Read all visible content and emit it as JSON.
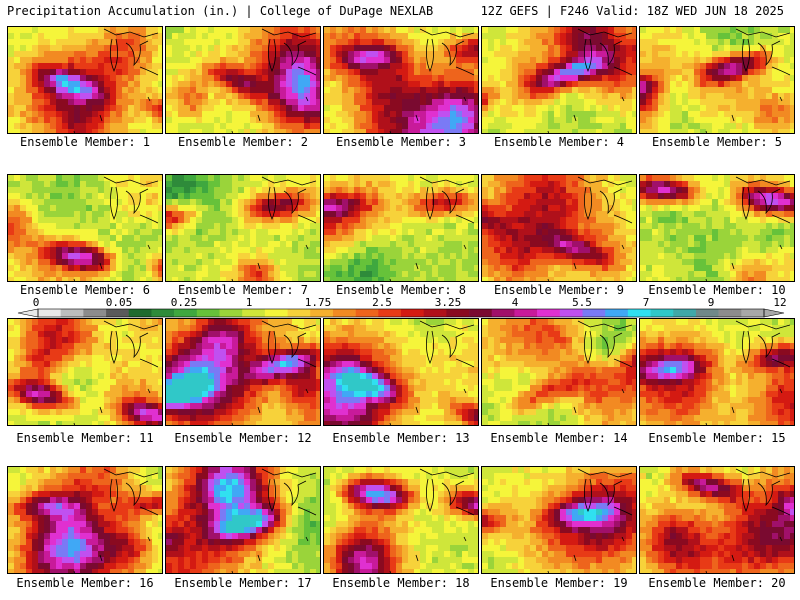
{
  "header": {
    "left": "Precipitation Accumulation (in.) | College of DuPage NEXLAB",
    "right": "12Z GEFS | F246 Valid: 18Z WED JUN 18 2025"
  },
  "member_label_prefix": "Ensemble Member: ",
  "members": [
    {
      "id": 1,
      "label": "Ensemble Member: 1",
      "seed": 11
    },
    {
      "id": 2,
      "label": "Ensemble Member: 2",
      "seed": 23
    },
    {
      "id": 3,
      "label": "Ensemble Member: 3",
      "seed": 37
    },
    {
      "id": 4,
      "label": "Ensemble Member: 4",
      "seed": 41
    },
    {
      "id": 5,
      "label": "Ensemble Member: 5",
      "seed": 53
    },
    {
      "id": 6,
      "label": "Ensemble Member: 6",
      "seed": 67
    },
    {
      "id": 7,
      "label": "Ensemble Member: 7",
      "seed": 71
    },
    {
      "id": 8,
      "label": "Ensemble Member: 8",
      "seed": 83
    },
    {
      "id": 9,
      "label": "Ensemble Member: 9",
      "seed": 97
    },
    {
      "id": 10,
      "label": "Ensemble Member: 10",
      "seed": 101
    },
    {
      "id": 11,
      "label": "Ensemble Member: 11",
      "seed": 113
    },
    {
      "id": 12,
      "label": "Ensemble Member: 12",
      "seed": 127
    },
    {
      "id": 13,
      "label": "Ensemble Member: 13",
      "seed": 131
    },
    {
      "id": 14,
      "label": "Ensemble Member: 14",
      "seed": 149
    },
    {
      "id": 15,
      "label": "Ensemble Member: 15",
      "seed": 151
    },
    {
      "id": 16,
      "label": "Ensemble Member: 16",
      "seed": 163
    },
    {
      "id": 17,
      "label": "Ensemble Member: 17",
      "seed": 173
    },
    {
      "id": 18,
      "label": "Ensemble Member: 18",
      "seed": 181
    },
    {
      "id": 19,
      "label": "Ensemble Member: 19",
      "seed": 191
    },
    {
      "id": 20,
      "label": "Ensemble Member: 20",
      "seed": 199
    }
  ],
  "colorbar": {
    "tick_labels": [
      "0",
      "0.05",
      "0.25",
      "1",
      "1.75",
      "2.5",
      "3.25",
      "4",
      "5.5",
      "7",
      "9",
      "12"
    ],
    "colors": [
      "#e8e8e8",
      "#bdbdbd",
      "#8c8c8c",
      "#5a5a5a",
      "#1f6b2e",
      "#2e8b3a",
      "#3fa83f",
      "#66c23a",
      "#9ad43a",
      "#cfe63a",
      "#f5f53a",
      "#f7d23a",
      "#f5b02e",
      "#f28a22",
      "#ee641c",
      "#e83a16",
      "#d41a12",
      "#b0101a",
      "#8a0a20",
      "#7a0a30",
      "#a0106a",
      "#c81a9a",
      "#e030d0",
      "#c050f0",
      "#7a7af5",
      "#40a8f5",
      "#30e0f0",
      "#30c8c8",
      "#40a8a8",
      "#708888",
      "#8c8c8c",
      "#a8a8a8"
    ]
  }
}
